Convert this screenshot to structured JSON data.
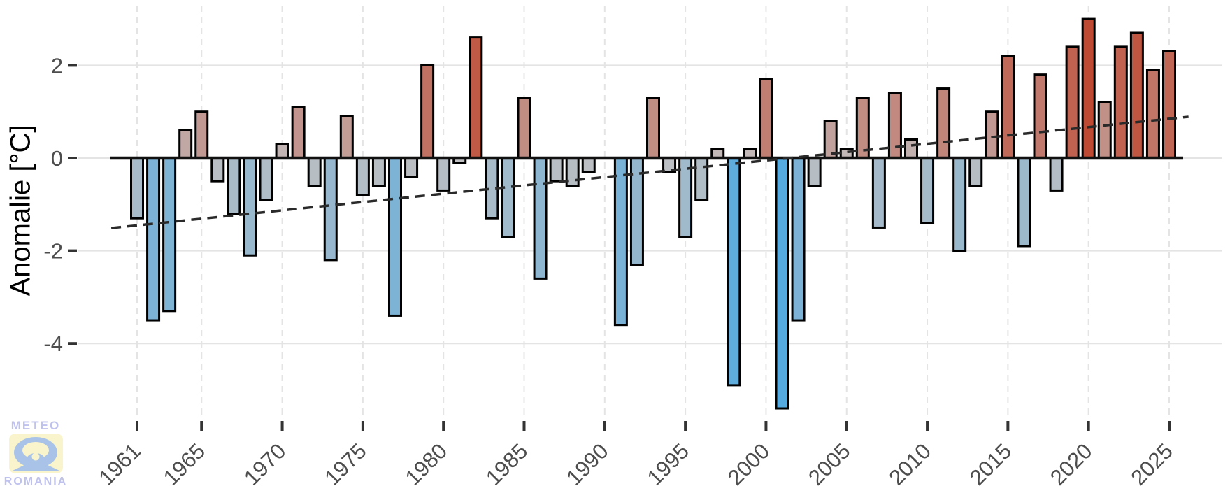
{
  "chart_data": {
    "type": "bar",
    "title": "",
    "ylabel": "Anomalie [°C]",
    "xlabel": "",
    "grid": true,
    "legend": null,
    "ylim": [
      -5.6,
      3.3
    ],
    "y_tick_values": [
      2,
      0,
      -2,
      -4
    ],
    "x_tick_years": [
      1961,
      1965,
      1970,
      1975,
      1980,
      1985,
      1990,
      1995,
      2000,
      2005,
      2010,
      2015,
      2020,
      2025
    ],
    "years": [
      1961,
      1962,
      1963,
      1964,
      1965,
      1966,
      1967,
      1968,
      1969,
      1970,
      1971,
      1972,
      1973,
      1974,
      1975,
      1976,
      1977,
      1978,
      1979,
      1980,
      1981,
      1982,
      1983,
      1984,
      1985,
      1986,
      1987,
      1988,
      1989,
      1990,
      1991,
      1992,
      1993,
      1994,
      1995,
      1996,
      1997,
      1998,
      1999,
      2000,
      2001,
      2002,
      2003,
      2004,
      2005,
      2006,
      2007,
      2008,
      2009,
      2010,
      2011,
      2012,
      2013,
      2014,
      2015,
      2016,
      2017,
      2018,
      2019,
      2020,
      2021,
      2022,
      2023,
      2024,
      2025
    ],
    "values": [
      -1.3,
      -3.5,
      -3.3,
      0.6,
      1.0,
      -0.5,
      -1.2,
      -2.1,
      -0.9,
      0.3,
      1.1,
      -0.6,
      -2.2,
      0.9,
      -0.8,
      -0.6,
      -3.4,
      -0.4,
      2.0,
      -0.7,
      -0.1,
      2.6,
      -1.3,
      -1.7,
      1.3,
      -2.6,
      -0.5,
      -0.6,
      -0.3,
      0.0,
      -3.6,
      -2.3,
      1.3,
      -0.3,
      -1.7,
      -0.9,
      0.2,
      -4.9,
      0.2,
      1.7,
      -5.4,
      -3.5,
      -0.6,
      0.8,
      0.2,
      1.3,
      -1.5,
      1.4,
      0.4,
      -1.4,
      1.5,
      -2.0,
      -0.6,
      1.0,
      2.2,
      -1.9,
      1.8,
      -0.7,
      2.4,
      3.0,
      1.2,
      2.4,
      2.7,
      1.9,
      2.3
    ],
    "trend_line": {
      "style": "dashed",
      "start_year": 1959.4,
      "start_value": -1.51,
      "end_year": 2026.2,
      "end_value": 0.89
    },
    "color_scale": {
      "neutral": "#c2c0c1",
      "negative_max_color": "#55abe0",
      "negative_domain": -5.4,
      "positive_max_color": "#bf4a33",
      "positive_domain": 3.0
    },
    "styles": {
      "bar_border": "#000000",
      "zero_line": "#111111",
      "trend_color": "#2a2a2a",
      "gridline": "#e4e4e4",
      "tick_mark": "#333333",
      "tick_label": "#4d4d4d",
      "axis_title": "#000000"
    }
  },
  "watermark": {
    "top_text": "METEO",
    "bottom_text": "ROMANIA",
    "text_color": "#bfc2ec",
    "emblem_yellow": "#f9f4cb",
    "emblem_blue": "#a9c3e8"
  }
}
